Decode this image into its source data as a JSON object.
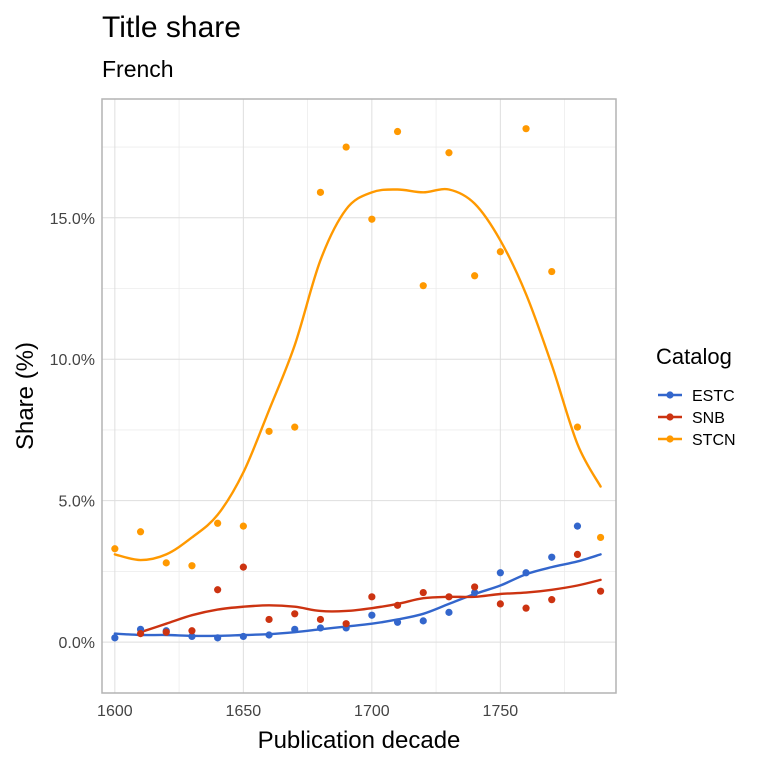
{
  "chart_data": {
    "type": "scatter",
    "title": "Title share",
    "subtitle": "French",
    "xlabel": "Publication decade",
    "ylabel": "Share (%)",
    "xlim": [
      1595,
      1795
    ],
    "ylim": [
      -1.8,
      19.2
    ],
    "x_ticks": [
      1600,
      1650,
      1700,
      1750
    ],
    "x_tick_labels": [
      "1600",
      "1650",
      "1700",
      "1750"
    ],
    "y_ticks": [
      0,
      5,
      10,
      15
    ],
    "y_tick_labels": [
      "0.0%",
      "5.0%",
      "10.0%",
      "15.0%"
    ],
    "grid": true,
    "legend": {
      "title": "Catalog",
      "placement": "right"
    },
    "series": [
      {
        "name": "ESTC",
        "color": "#3366cc",
        "points": [
          [
            1600,
            0.15
          ],
          [
            1610,
            0.45
          ],
          [
            1620,
            0.4
          ],
          [
            1630,
            0.2
          ],
          [
            1640,
            0.15
          ],
          [
            1650,
            0.2
          ],
          [
            1660,
            0.25
          ],
          [
            1670,
            0.45
          ],
          [
            1680,
            0.5
          ],
          [
            1690,
            0.5
          ],
          [
            1700,
            0.95
          ],
          [
            1710,
            0.7
          ],
          [
            1720,
            0.75
          ],
          [
            1730,
            1.05
          ],
          [
            1740,
            1.75
          ],
          [
            1750,
            2.45
          ],
          [
            1760,
            2.45
          ],
          [
            1770,
            3.0
          ],
          [
            1780,
            4.1
          ]
        ],
        "smooth": [
          [
            1600,
            0.3
          ],
          [
            1610,
            0.25
          ],
          [
            1620,
            0.25
          ],
          [
            1630,
            0.22
          ],
          [
            1640,
            0.22
          ],
          [
            1650,
            0.25
          ],
          [
            1660,
            0.28
          ],
          [
            1670,
            0.35
          ],
          [
            1680,
            0.45
          ],
          [
            1690,
            0.55
          ],
          [
            1700,
            0.65
          ],
          [
            1710,
            0.8
          ],
          [
            1720,
            1.0
          ],
          [
            1730,
            1.35
          ],
          [
            1740,
            1.7
          ],
          [
            1750,
            2.0
          ],
          [
            1760,
            2.4
          ],
          [
            1770,
            2.65
          ],
          [
            1780,
            2.85
          ],
          [
            1789,
            3.1
          ]
        ]
      },
      {
        "name": "SNB",
        "color": "#cc3311",
        "points": [
          [
            1610,
            0.3
          ],
          [
            1620,
            0.35
          ],
          [
            1630,
            0.4
          ],
          [
            1640,
            1.85
          ],
          [
            1650,
            2.65
          ],
          [
            1660,
            0.8
          ],
          [
            1670,
            1.0
          ],
          [
            1680,
            0.8
          ],
          [
            1690,
            0.65
          ],
          [
            1700,
            1.6
          ],
          [
            1710,
            1.3
          ],
          [
            1720,
            1.75
          ],
          [
            1730,
            1.6
          ],
          [
            1740,
            1.95
          ],
          [
            1750,
            1.35
          ],
          [
            1760,
            1.2
          ],
          [
            1770,
            1.5
          ],
          [
            1780,
            3.1
          ],
          [
            1789,
            1.8
          ]
        ],
        "smooth": [
          [
            1610,
            0.35
          ],
          [
            1620,
            0.65
          ],
          [
            1630,
            0.95
          ],
          [
            1640,
            1.15
          ],
          [
            1650,
            1.25
          ],
          [
            1660,
            1.3
          ],
          [
            1670,
            1.25
          ],
          [
            1680,
            1.1
          ],
          [
            1690,
            1.1
          ],
          [
            1700,
            1.2
          ],
          [
            1710,
            1.35
          ],
          [
            1720,
            1.55
          ],
          [
            1730,
            1.6
          ],
          [
            1740,
            1.6
          ],
          [
            1750,
            1.7
          ],
          [
            1760,
            1.75
          ],
          [
            1770,
            1.85
          ],
          [
            1780,
            2.0
          ],
          [
            1789,
            2.2
          ]
        ]
      },
      {
        "name": "STCN",
        "color": "#ff9900",
        "points": [
          [
            1600,
            3.3
          ],
          [
            1610,
            3.9
          ],
          [
            1620,
            2.8
          ],
          [
            1630,
            2.7
          ],
          [
            1640,
            4.2
          ],
          [
            1650,
            4.1
          ],
          [
            1660,
            7.45
          ],
          [
            1670,
            7.6
          ],
          [
            1680,
            15.9
          ],
          [
            1690,
            17.5
          ],
          [
            1700,
            14.95
          ],
          [
            1710,
            18.05
          ],
          [
            1720,
            12.6
          ],
          [
            1730,
            17.3
          ],
          [
            1740,
            12.95
          ],
          [
            1750,
            13.8
          ],
          [
            1760,
            18.15
          ],
          [
            1770,
            13.1
          ],
          [
            1780,
            7.6
          ],
          [
            1789,
            3.7
          ]
        ],
        "smooth": [
          [
            1600,
            3.1
          ],
          [
            1610,
            2.9
          ],
          [
            1620,
            3.1
          ],
          [
            1630,
            3.7
          ],
          [
            1640,
            4.5
          ],
          [
            1650,
            6.0
          ],
          [
            1660,
            8.2
          ],
          [
            1670,
            10.5
          ],
          [
            1680,
            13.5
          ],
          [
            1690,
            15.3
          ],
          [
            1700,
            15.9
          ],
          [
            1710,
            16.0
          ],
          [
            1720,
            15.9
          ],
          [
            1730,
            16.0
          ],
          [
            1740,
            15.5
          ],
          [
            1750,
            14.2
          ],
          [
            1760,
            12.3
          ],
          [
            1770,
            9.8
          ],
          [
            1780,
            7.0
          ],
          [
            1789,
            5.5
          ]
        ]
      }
    ]
  }
}
